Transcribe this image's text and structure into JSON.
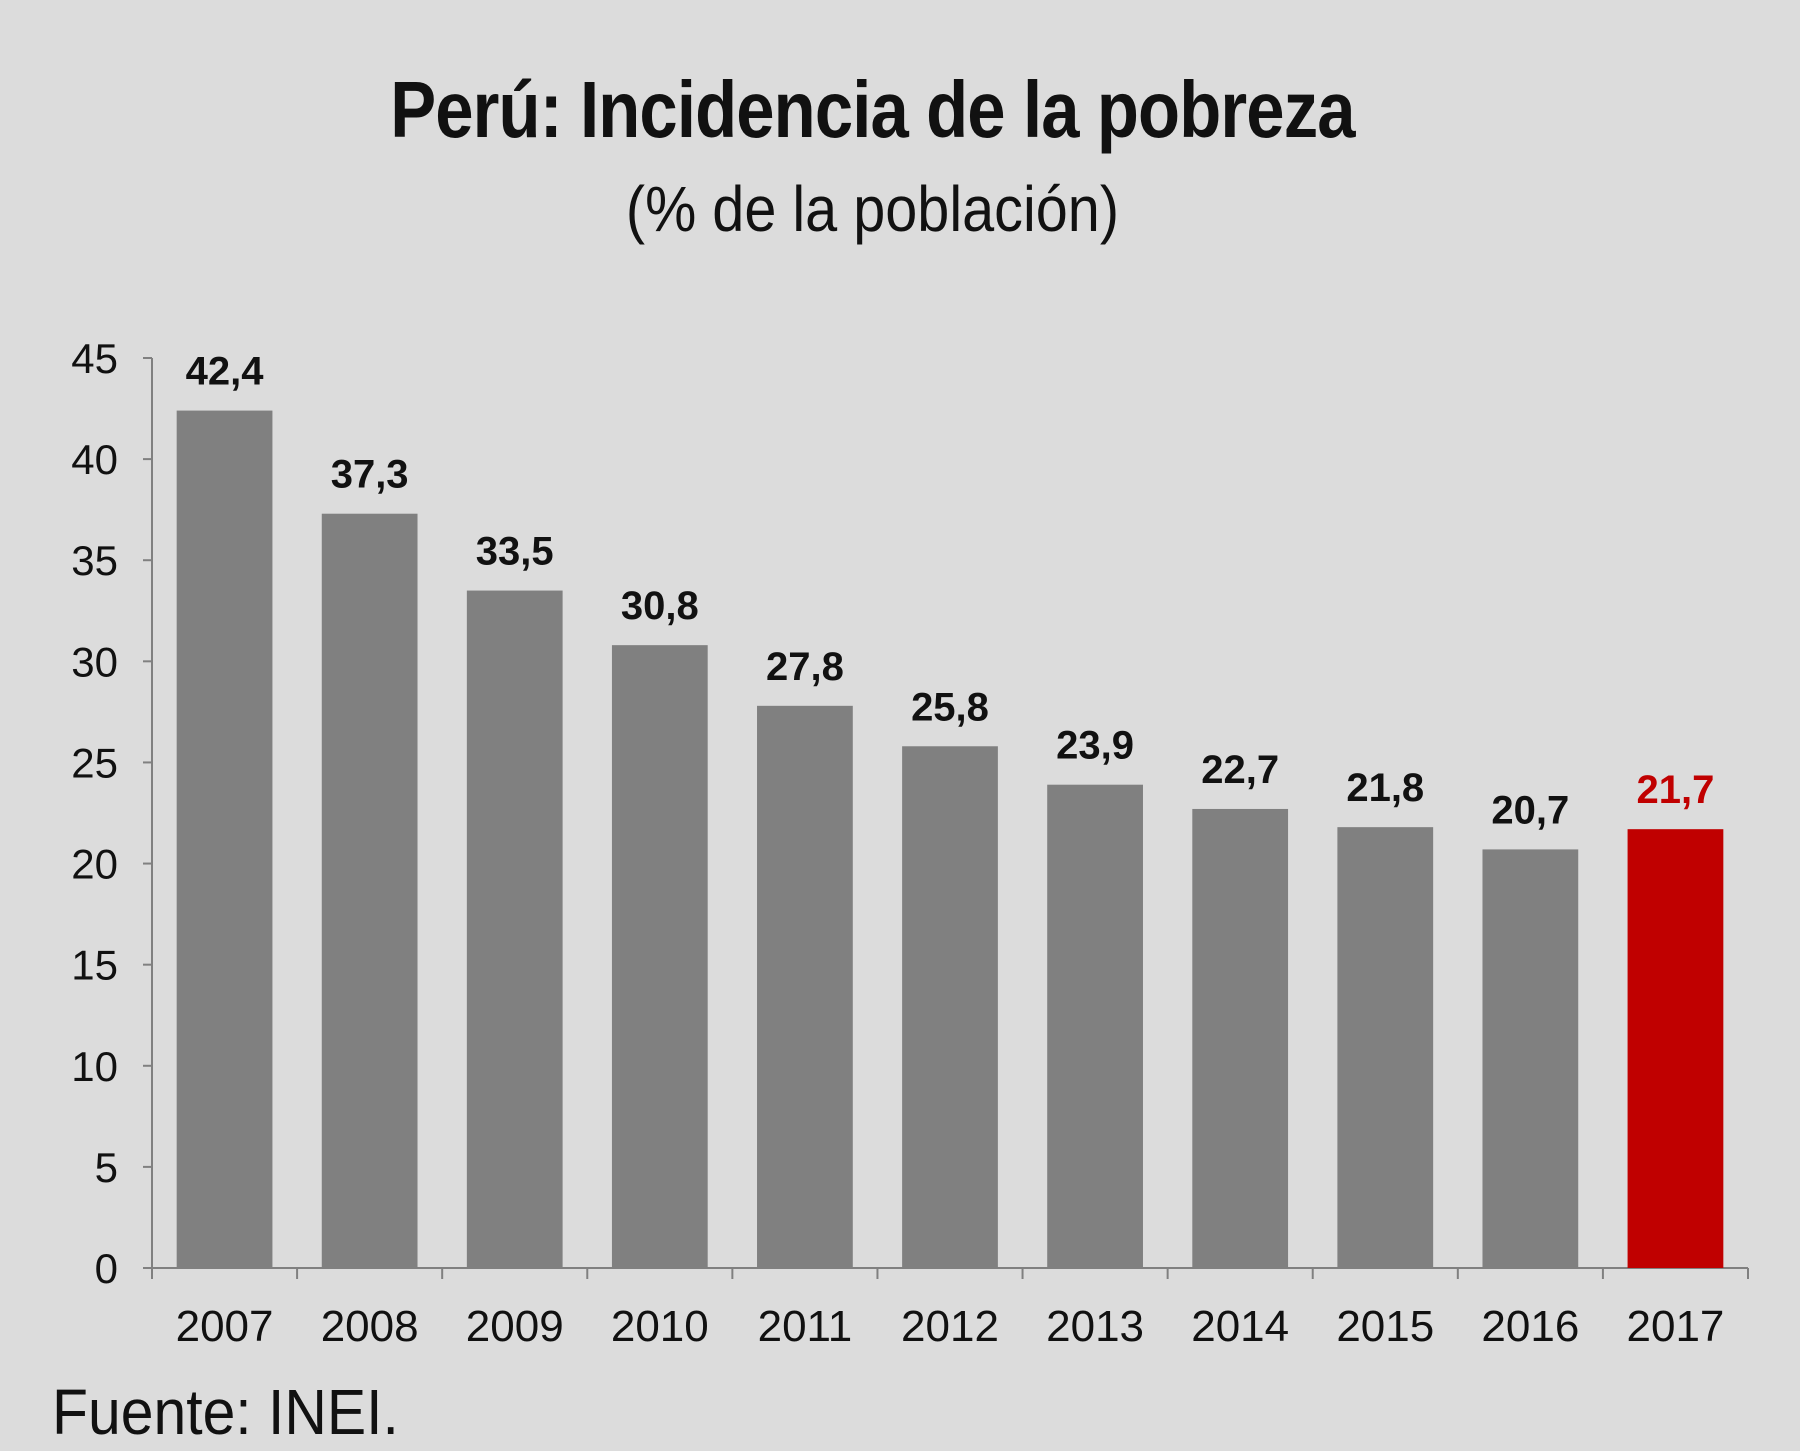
{
  "chart_data": {
    "type": "bar",
    "title": "Perú: Incidencia de la pobreza",
    "subtitle": "(% de la población)",
    "categories": [
      "2007",
      "2008",
      "2009",
      "2010",
      "2011",
      "2012",
      "2013",
      "2014",
      "2015",
      "2016",
      "2017"
    ],
    "values": [
      42.4,
      37.3,
      33.5,
      30.8,
      27.8,
      25.8,
      23.9,
      22.7,
      21.8,
      20.7,
      21.7
    ],
    "value_labels": [
      "42,4",
      "37,3",
      "33,5",
      "30,8",
      "27,8",
      "25,8",
      "23,9",
      "22,7",
      "21,8",
      "20,7",
      "21,7"
    ],
    "ylim": [
      0,
      45
    ],
    "yticks": [
      0,
      5,
      10,
      15,
      20,
      25,
      30,
      35,
      40,
      45
    ],
    "xlabel": "",
    "ylabel": "",
    "grid": false,
    "legend": "none",
    "highlight_index": 10,
    "colors": {
      "bar": "#808080",
      "highlight_bar": "#c00000",
      "highlight_label": "#c00000",
      "label": "#111111",
      "axis": "#808080",
      "background": "#dcdcdc"
    }
  },
  "source": "Fuente: INEI."
}
